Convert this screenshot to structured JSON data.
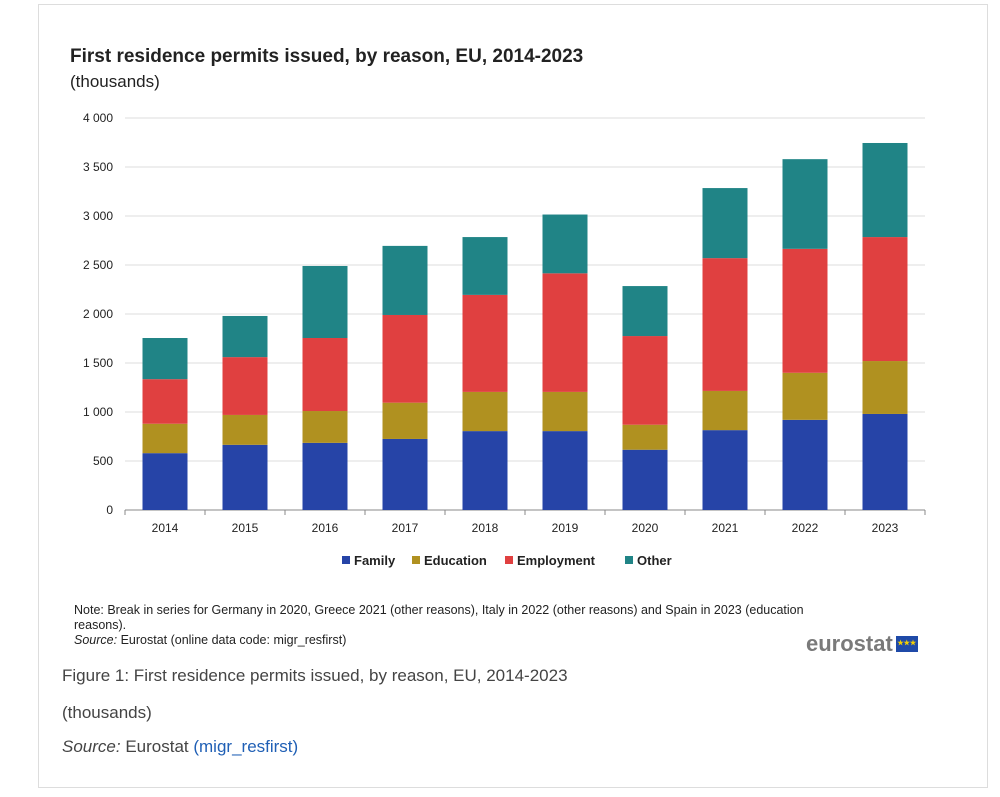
{
  "chart_data": {
    "type": "bar",
    "stacked": true,
    "title": "First residence permits issued, by reason, EU, 2014-2023",
    "subtitle": "(thousands)",
    "categories": [
      "2014",
      "2015",
      "2016",
      "2017",
      "2018",
      "2019",
      "2020",
      "2021",
      "2022",
      "2023"
    ],
    "ylim": [
      0,
      4000
    ],
    "yticks": [
      "0",
      "500",
      "1 000",
      "1 500",
      "2 000",
      "2 500",
      "3 000",
      "3 500",
      "4 000"
    ],
    "grid": true,
    "legend": "bottom",
    "series": [
      {
        "name": "Family",
        "color": "#2644A7",
        "values": [
          580,
          665,
          685,
          725,
          805,
          805,
          615,
          815,
          920,
          980
        ]
      },
      {
        "name": "Education",
        "color": "#B09120",
        "values": [
          300,
          305,
          325,
          370,
          400,
          400,
          255,
          400,
          480,
          540
        ]
      },
      {
        "name": "Employment",
        "color": "#E04040",
        "values": [
          455,
          590,
          745,
          895,
          990,
          1210,
          905,
          1355,
          1265,
          1265
        ]
      },
      {
        "name": "Other",
        "color": "#208486",
        "values": [
          420,
          420,
          735,
          705,
          590,
          600,
          510,
          715,
          915,
          960
        ]
      }
    ]
  },
  "note": "Note: Break in series for Germany in 2020, Greece 2021 (other reasons), Italy in 2022 (other reasons) and Spain in 2023 (education reasons).",
  "source_label": "Source:",
  "source_text": " Eurostat (online data code: migr_resfirst)",
  "logo": "eurostat",
  "caption": {
    "figure": "Figure 1: First residence permits issued, by reason, EU, 2014-2023",
    "unit": "(thousands)",
    "source_label": "Source:",
    "source_text": " Eurostat ",
    "link": "(migr_resfirst)"
  }
}
